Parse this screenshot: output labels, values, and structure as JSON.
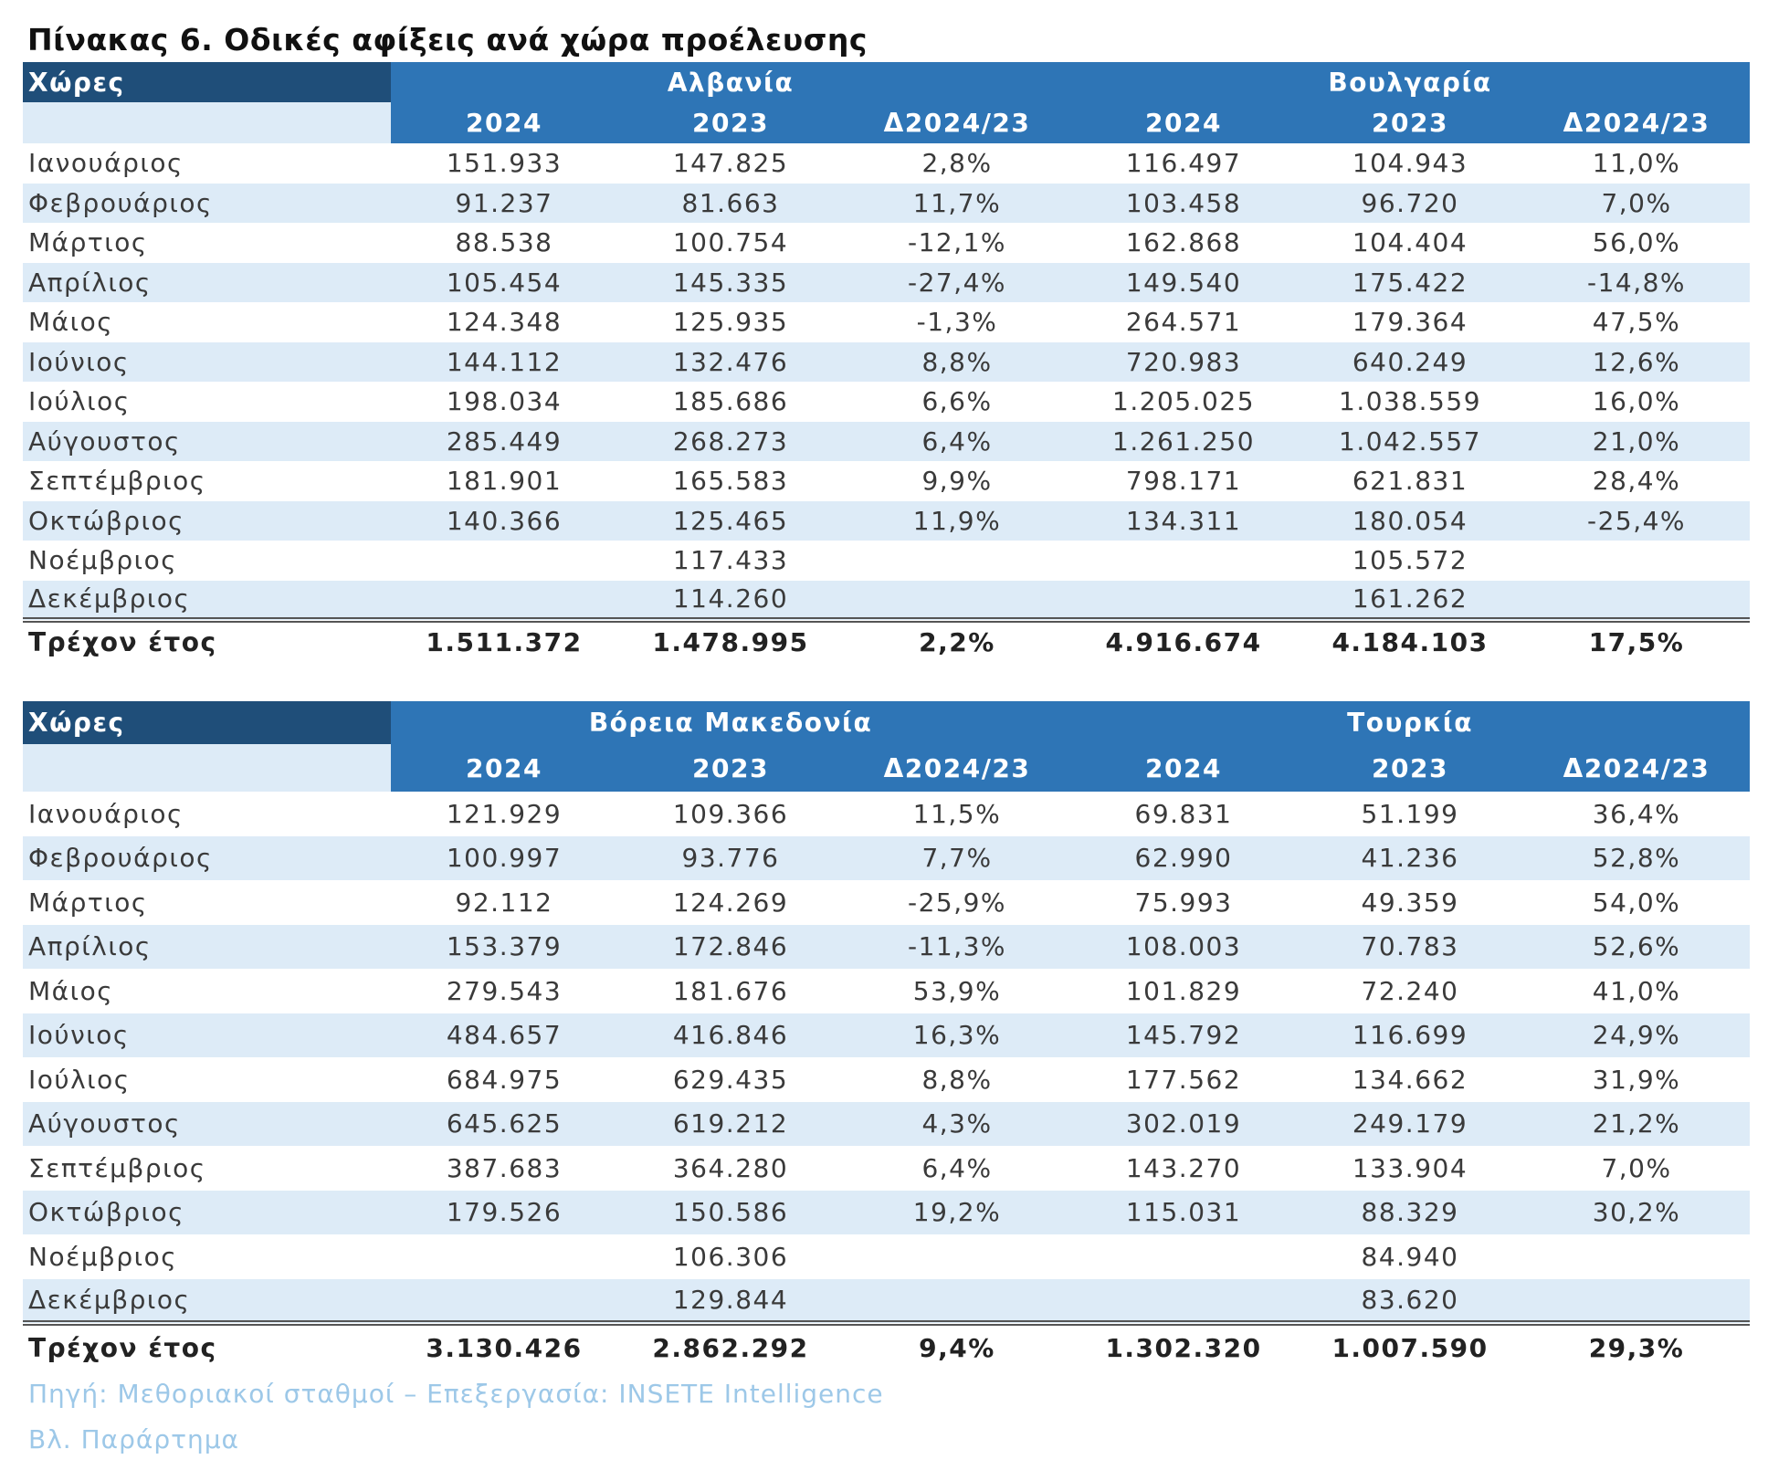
{
  "title": "Πίνακας 6. Οδικές αφίξεις ανά χώρα προέλευσης",
  "tables": [
    {
      "corner_label": "Χώρες",
      "countries": [
        "Αλβανία",
        "Βουλγαρία"
      ],
      "subheaders": [
        "2024",
        "2023",
        "Δ2024/23",
        "2024",
        "2023",
        "Δ2024/23"
      ],
      "rows": [
        [
          "Ιανουάριος",
          "151.933",
          "147.825",
          "2,8%",
          "116.497",
          "104.943",
          "11,0%"
        ],
        [
          "Φεβρουάριος",
          "91.237",
          "81.663",
          "11,7%",
          "103.458",
          "96.720",
          "7,0%"
        ],
        [
          "Μάρτιος",
          "88.538",
          "100.754",
          "-12,1%",
          "162.868",
          "104.404",
          "56,0%"
        ],
        [
          "Απρίλιος",
          "105.454",
          "145.335",
          "-27,4%",
          "149.540",
          "175.422",
          "-14,8%"
        ],
        [
          "Μάιος",
          "124.348",
          "125.935",
          "-1,3%",
          "264.571",
          "179.364",
          "47,5%"
        ],
        [
          "Ιούνιος",
          "144.112",
          "132.476",
          "8,8%",
          "720.983",
          "640.249",
          "12,6%"
        ],
        [
          "Ιούλιος",
          "198.034",
          "185.686",
          "6,6%",
          "1.205.025",
          "1.038.559",
          "16,0%"
        ],
        [
          "Αύγουστος",
          "285.449",
          "268.273",
          "6,4%",
          "1.261.250",
          "1.042.557",
          "21,0%"
        ],
        [
          "Σεπτέμβριος",
          "181.901",
          "165.583",
          "9,9%",
          "798.171",
          "621.831",
          "28,4%"
        ],
        [
          "Οκτώβριος",
          "140.366",
          "125.465",
          "11,9%",
          "134.311",
          "180.054",
          "-25,4%"
        ],
        [
          "Νοέμβριος",
          "",
          "117.433",
          "",
          "",
          "105.572",
          ""
        ],
        [
          "Δεκέμβριος",
          "",
          "114.260",
          "",
          "",
          "161.262",
          ""
        ]
      ],
      "total": [
        "Τρέχον έτος",
        "1.511.372",
        "1.478.995",
        "2,2%",
        "4.916.674",
        "4.184.103",
        "17,5%"
      ]
    },
    {
      "corner_label": "Χώρες",
      "countries": [
        "Βόρεια Μακεδονία",
        "Τουρκία"
      ],
      "subheaders": [
        "2024",
        "2023",
        "Δ2024/23",
        "2024",
        "2023",
        "Δ2024/23"
      ],
      "rows": [
        [
          "Ιανουάριος",
          "121.929",
          "109.366",
          "11,5%",
          "69.831",
          "51.199",
          "36,4%"
        ],
        [
          "Φεβρουάριος",
          "100.997",
          "93.776",
          "7,7%",
          "62.990",
          "41.236",
          "52,8%"
        ],
        [
          "Μάρτιος",
          "92.112",
          "124.269",
          "-25,9%",
          "75.993",
          "49.359",
          "54,0%"
        ],
        [
          "Απρίλιος",
          "153.379",
          "172.846",
          "-11,3%",
          "108.003",
          "70.783",
          "52,6%"
        ],
        [
          "Μάιος",
          "279.543",
          "181.676",
          "53,9%",
          "101.829",
          "72.240",
          "41,0%"
        ],
        [
          "Ιούνιος",
          "484.657",
          "416.846",
          "16,3%",
          "145.792",
          "116.699",
          "24,9%"
        ],
        [
          "Ιούλιος",
          "684.975",
          "629.435",
          "8,8%",
          "177.562",
          "134.662",
          "31,9%"
        ],
        [
          "Αύγουστος",
          "645.625",
          "619.212",
          "4,3%",
          "302.019",
          "249.179",
          "21,2%"
        ],
        [
          "Σεπτέμβριος",
          "387.683",
          "364.280",
          "6,4%",
          "143.270",
          "133.904",
          "7,0%"
        ],
        [
          "Οκτώβριος",
          "179.526",
          "150.586",
          "19,2%",
          "115.031",
          "88.329",
          "30,2%"
        ],
        [
          "Νοέμβριος",
          "",
          "106.306",
          "",
          "",
          "84.940",
          ""
        ],
        [
          "Δεκέμβριος",
          "",
          "129.844",
          "",
          "",
          "83.620",
          ""
        ]
      ],
      "total": [
        "Τρέχον έτος",
        "3.130.426",
        "2.862.292",
        "9,4%",
        "1.302.320",
        "1.007.590",
        "29,3%"
      ]
    }
  ],
  "source": "Πηγή: Μεθοριακοί  σταθμοί – Επεξεργασία: INSETE Intelligence",
  "appendix_note": "Βλ. Παράρτημα",
  "colors": {
    "header": "#2e75b6",
    "corner": "#1f4e79",
    "stripe": "#ddebf7",
    "source": "#9dc8e8"
  }
}
